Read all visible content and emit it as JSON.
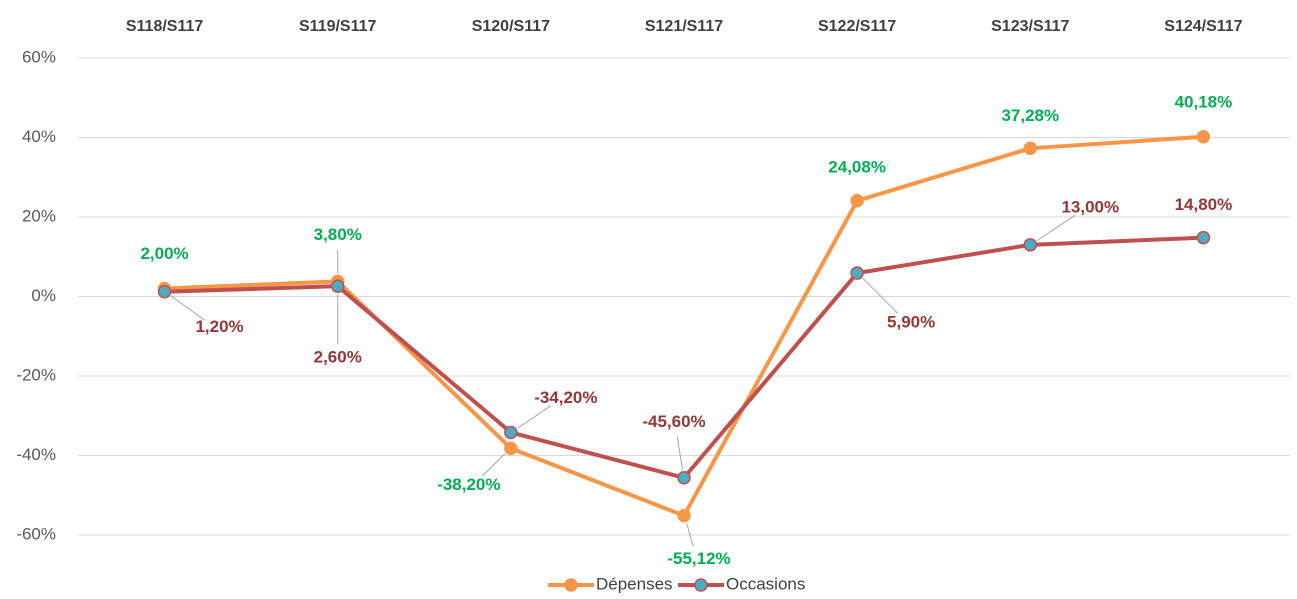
{
  "chart_data": {
    "type": "line",
    "categories": [
      "S118/S117",
      "S119/S117",
      "S120/S117",
      "S121/S117",
      "S122/S117",
      "S123/S117",
      "S124/S117"
    ],
    "series": [
      {
        "name": "Dépenses",
        "color": "#f79646",
        "marker_color": "#f79646",
        "label_color": "#00b050",
        "values": [
          2.0,
          3.8,
          -38.2,
          -55.12,
          24.08,
          37.28,
          40.18
        ],
        "value_labels": [
          "2,00%",
          "3,80%",
          "-38,20%",
          "-55,12%",
          "24,08%",
          "37,28%",
          "40,18%"
        ]
      },
      {
        "name": "Occasions",
        "color": "#c0504d",
        "marker_color": "#4bacc6",
        "label_color": "#953735",
        "values": [
          1.2,
          2.6,
          -34.2,
          -45.6,
          5.9,
          13.0,
          14.8
        ],
        "value_labels": [
          "1,20%",
          "2,60%",
          "-34,20%",
          "-45,60%",
          "5,90%",
          "13,00%",
          "14,80%"
        ]
      }
    ],
    "ylim": [
      -60,
      60
    ],
    "yticks": [
      {
        "value": -60,
        "label": "-60%"
      },
      {
        "value": -40,
        "label": "-40%"
      },
      {
        "value": -20,
        "label": "-20%"
      },
      {
        "value": 0,
        "label": "0%"
      },
      {
        "value": 20,
        "label": "20%"
      },
      {
        "value": 40,
        "label": "40%"
      },
      {
        "value": 60,
        "label": "60%"
      }
    ],
    "grid": true,
    "legend": "bottom"
  }
}
